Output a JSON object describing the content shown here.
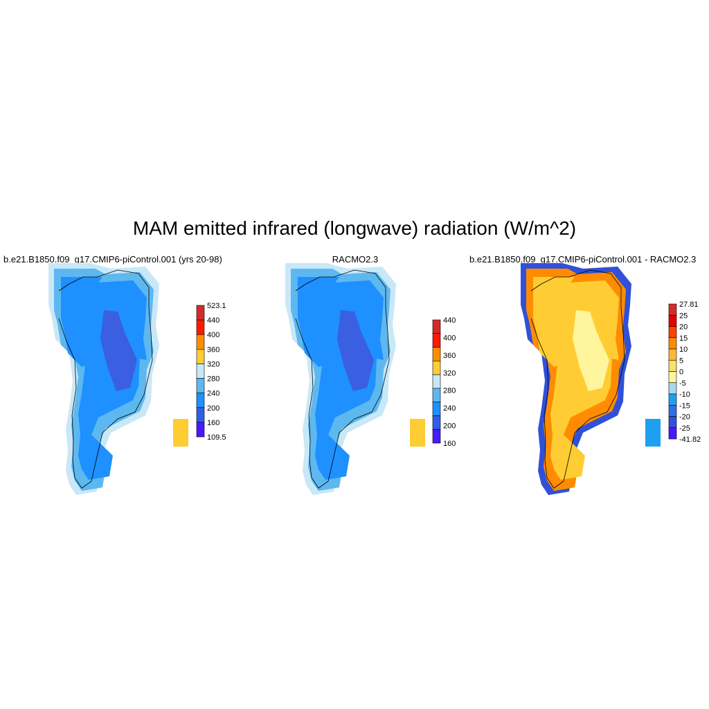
{
  "title": "MAM emitted infrared (longwave) radiation (W/m^2)",
  "panels": [
    {
      "title": "b.e21.B1850.f09_g17.CMIP6-piControl.001 (yrs 20-98)",
      "colorbar": {
        "labels": [
          "523.1",
          "440",
          "400",
          "360",
          "320",
          "280",
          "240",
          "200",
          "160",
          "109.5"
        ],
        "colors": [
          "#d32b2b",
          "#ff1a00",
          "#ff8c00",
          "#ffcc33",
          "#c8e8f8",
          "#5db8f0",
          "#1e90ff",
          "#2f5fe6",
          "#4a1aff"
        ]
      },
      "palette": {
        "interior": "#3a5fe0",
        "ice": "#1e90ff",
        "margin": "#5db8f0",
        "coast": "#c8e8f8",
        "warm": "#ffcc33"
      }
    },
    {
      "title": "RACMO2.3",
      "colorbar": {
        "labels": [
          "440",
          "400",
          "360",
          "320",
          "280",
          "240",
          "200",
          "160"
        ],
        "colors": [
          "#d32b2b",
          "#ff1a00",
          "#ff8c00",
          "#ffcc33",
          "#c8e8f8",
          "#5db8f0",
          "#1e90ff",
          "#2f5fe6",
          "#4a1aff"
        ]
      },
      "palette": {
        "interior": "#3a5fe0",
        "ice": "#1e90ff",
        "margin": "#5db8f0",
        "coast": "#c8e8f8",
        "warm": "#ffcc33"
      }
    },
    {
      "title": "b.e21.B1850.f09_g17.CMIP6-piControl.001 - RACMO2.3",
      "colorbar": {
        "labels": [
          "27.81",
          "25",
          "20",
          "15",
          "10",
          "5",
          "0",
          "-5",
          "-10",
          "-15",
          "-20",
          "-25",
          "-41.82"
        ],
        "colors": [
          "#d32b2b",
          "#e60000",
          "#ff4000",
          "#ff8c00",
          "#ffb833",
          "#ffe066",
          "#fff59d",
          "#a8d8f0",
          "#1ea0f0",
          "#2f6fe6",
          "#3050d8",
          "#4a1aff"
        ]
      },
      "palette": {
        "interior": "#fff59d",
        "ice": "#ffcc33",
        "margin": "#ff8c00",
        "coast": "#3050d8",
        "warm": "#1ea0f0"
      }
    }
  ]
}
